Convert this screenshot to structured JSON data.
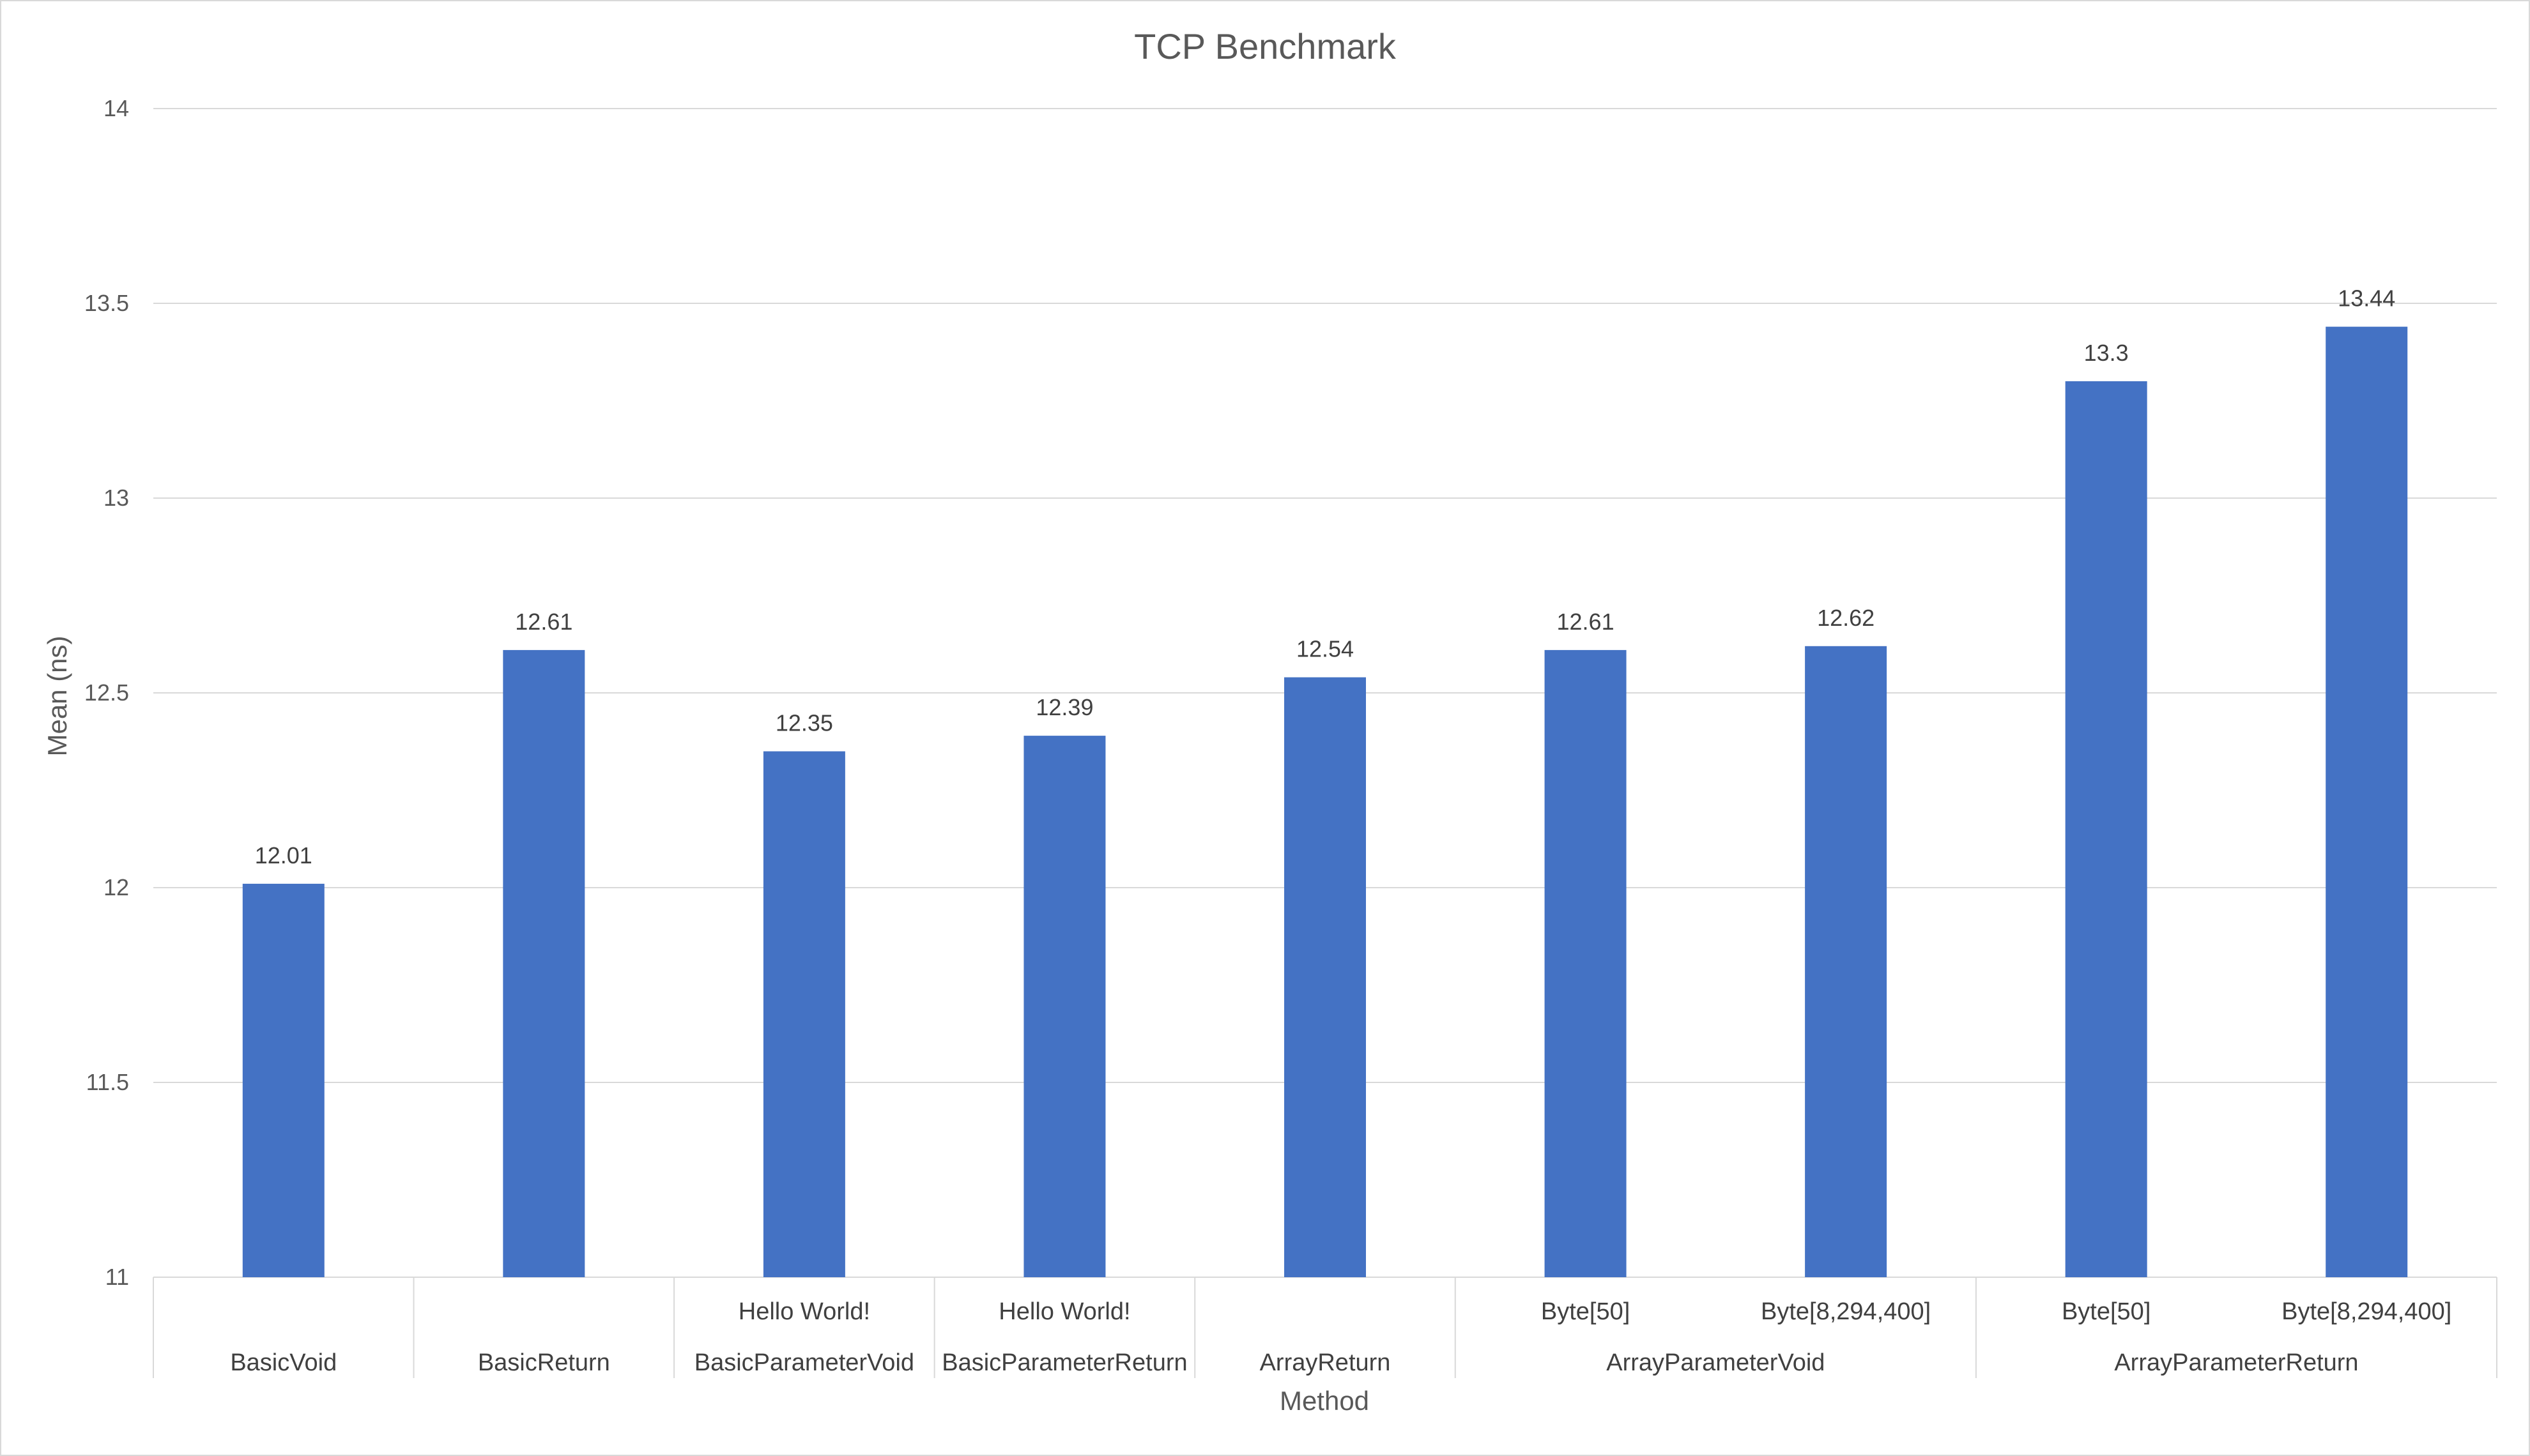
{
  "chart_data": {
    "type": "bar",
    "title": "TCP Benchmark",
    "xlabel": "Method",
    "ylabel": "Mean (ns)",
    "ylim": [
      11,
      14
    ],
    "yticks": [
      11,
      11.5,
      12,
      12.5,
      13,
      13.5,
      14
    ],
    "grid": true,
    "legend": "none",
    "bar_color": "#4472C4",
    "categories": [
      {
        "group": "BasicVoid",
        "sub": ""
      },
      {
        "group": "BasicReturn",
        "sub": ""
      },
      {
        "group": "BasicParameterVoid",
        "sub": "Hello World!"
      },
      {
        "group": "BasicParameterReturn",
        "sub": "Hello World!"
      },
      {
        "group": "ArrayReturn",
        "sub": ""
      },
      {
        "group": "ArrayParameterVoid",
        "sub": "Byte[50]"
      },
      {
        "group": "ArrayParameterVoid",
        "sub": "Byte[8,294,400]"
      },
      {
        "group": "ArrayParameterReturn",
        "sub": "Byte[50]"
      },
      {
        "group": "ArrayParameterReturn",
        "sub": "Byte[8,294,400]"
      }
    ],
    "groups": [
      {
        "label": "BasicVoid",
        "span": 1
      },
      {
        "label": "BasicReturn",
        "span": 1
      },
      {
        "label": "BasicParameterVoid",
        "span": 1
      },
      {
        "label": "BasicParameterReturn",
        "span": 1
      },
      {
        "label": "ArrayReturn",
        "span": 1
      },
      {
        "label": "ArrayParameterVoid",
        "span": 2
      },
      {
        "label": "ArrayParameterReturn",
        "span": 2
      }
    ],
    "values": [
      12.01,
      12.61,
      12.35,
      12.39,
      12.54,
      12.61,
      12.62,
      13.3,
      13.44
    ],
    "data_labels": [
      "12.01",
      "12.61",
      "12.35",
      "12.39",
      "12.54",
      "12.61",
      "12.62",
      "13.3",
      "13.44"
    ]
  }
}
